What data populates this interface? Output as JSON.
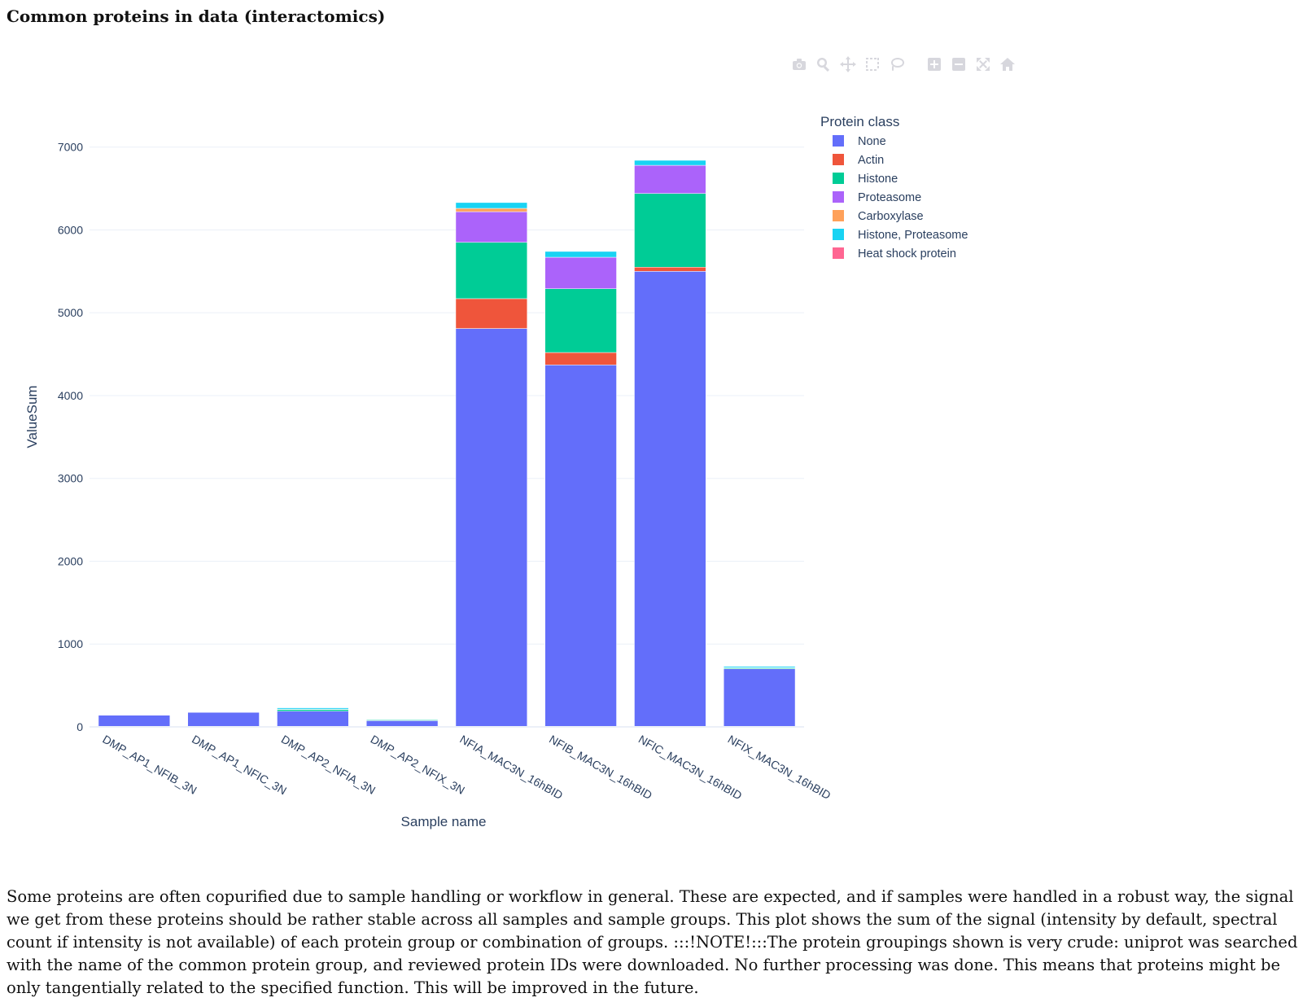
{
  "section": {
    "title": "Common proteins in data (interactomics)",
    "description": "Some proteins are often copurified due to sample handling or workflow in general. These are expected, and if samples were handled in a robust way, the signal we get from these proteins should be rather stable across all samples and sample groups. This plot shows the sum of the signal (intensity by default, spectral count if intensity is not available) of each protein group or combination of groups. :::!NOTE!:::The protein groupings shown is very crude: uniprot was searched with the name of the common protein group, and reviewed protein IDs were downloaded. No further processing was done. This means that proteins might be only tangentially related to the specified function. This will be improved in the future."
  },
  "modebar": {
    "icons": [
      "camera-icon",
      "zoom-icon",
      "pan-icon",
      "box-select-icon",
      "lasso-select-icon",
      "zoom-in-icon",
      "zoom-out-icon",
      "autoscale-icon",
      "reset-axes-icon"
    ],
    "icon_color": "#d7d7dd"
  },
  "chart_data": {
    "type": "bar",
    "barmode": "stack",
    "title": "",
    "xlabel": "Sample name",
    "ylabel": "ValueSum",
    "ylim": [
      0,
      7400
    ],
    "yticks": [
      0,
      1000,
      2000,
      3000,
      4000,
      5000,
      6000,
      7000
    ],
    "grid": true,
    "legend_title": "Protein class",
    "legend_position": "right",
    "categories": [
      "DMP_AP1_NFIB_3N",
      "DMP_AP1_NFIC_3N",
      "DMP_AP2_NFIA_3N",
      "DMP_AP2_NFIX_3N",
      "NFIA_MAC3N_16hBID",
      "NFIB_MAC3N_16hBID",
      "NFIC_MAC3N_16hBID",
      "NFIX_MAC3N_16hBID"
    ],
    "series": [
      {
        "name": "None",
        "color": "#636efa",
        "values": [
          140,
          175,
          190,
          75,
          4810,
          4370,
          5500,
          700
        ]
      },
      {
        "name": "Actin",
        "color": "#ef553b",
        "values": [
          0,
          0,
          0,
          0,
          360,
          150,
          50,
          0
        ]
      },
      {
        "name": "Histone",
        "color": "#00cc96",
        "values": [
          0,
          0,
          20,
          10,
          680,
          770,
          890,
          10
        ]
      },
      {
        "name": "Proteasome",
        "color": "#ab63fa",
        "values": [
          0,
          0,
          5,
          5,
          370,
          380,
          340,
          5
        ]
      },
      {
        "name": "Carboxylase",
        "color": "#ffa15a",
        "values": [
          0,
          0,
          0,
          0,
          40,
          0,
          0,
          0
        ]
      },
      {
        "name": "Histone, Proteasome",
        "color": "#19d3f3",
        "values": [
          0,
          0,
          15,
          5,
          70,
          70,
          60,
          15
        ]
      },
      {
        "name": "Heat shock protein",
        "color": "#ff6692",
        "values": [
          0,
          0,
          0,
          0,
          0,
          0,
          0,
          0
        ]
      }
    ]
  }
}
